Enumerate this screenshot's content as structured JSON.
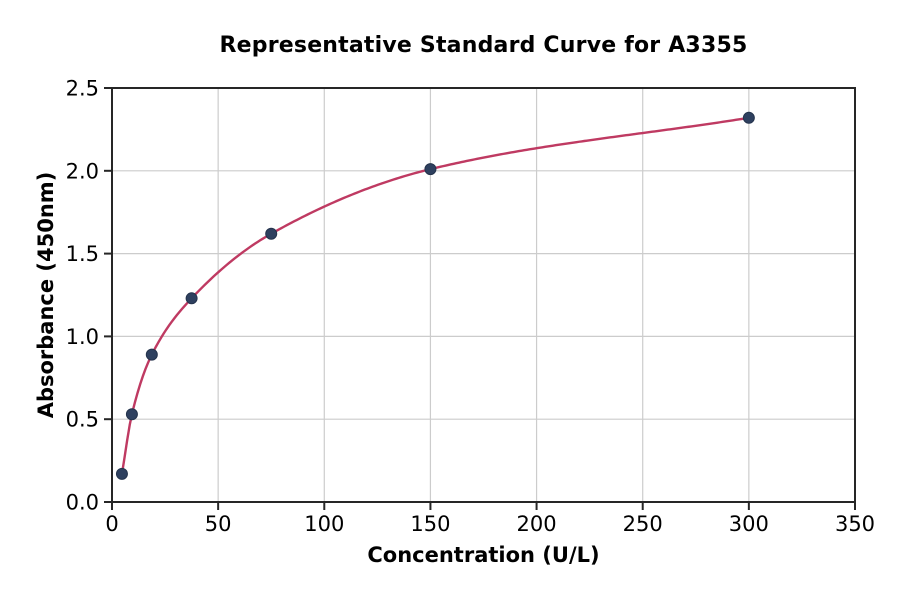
{
  "chart_data": {
    "type": "scatter",
    "title": "Representative Standard Curve for A3355",
    "xlabel": "Concentration (U/L)",
    "ylabel": "Absorbance (450nm)",
    "xlim": [
      0,
      350
    ],
    "ylim": [
      0,
      2.5
    ],
    "x_tick_values": [
      0,
      50,
      100,
      150,
      200,
      250,
      300,
      350
    ],
    "x_tick_labels": [
      "0",
      "50",
      "100",
      "150",
      "200",
      "250",
      "300",
      "350"
    ],
    "y_tick_values": [
      0,
      0.5,
      1.0,
      1.5,
      2.0,
      2.5
    ],
    "y_tick_labels": [
      "0.0",
      "0.5",
      "1.0",
      "1.5",
      "2.0",
      "2.5"
    ],
    "grid": true,
    "legend_position": "none",
    "series": [
      {
        "name": "standard-points-with-fit-curve",
        "x": [
          4.69,
          9.38,
          18.75,
          37.5,
          75,
          150,
          300
        ],
        "y": [
          0.17,
          0.53,
          0.89,
          1.23,
          1.62,
          2.01,
          2.32
        ],
        "marker": "circle",
        "marker_color": "#2e405f",
        "line_color": "#bf3a62"
      }
    ],
    "colors": {
      "grid": "#cccccc",
      "spine": "#262626",
      "tick_text": "#000000",
      "background": "#ffffff"
    }
  }
}
